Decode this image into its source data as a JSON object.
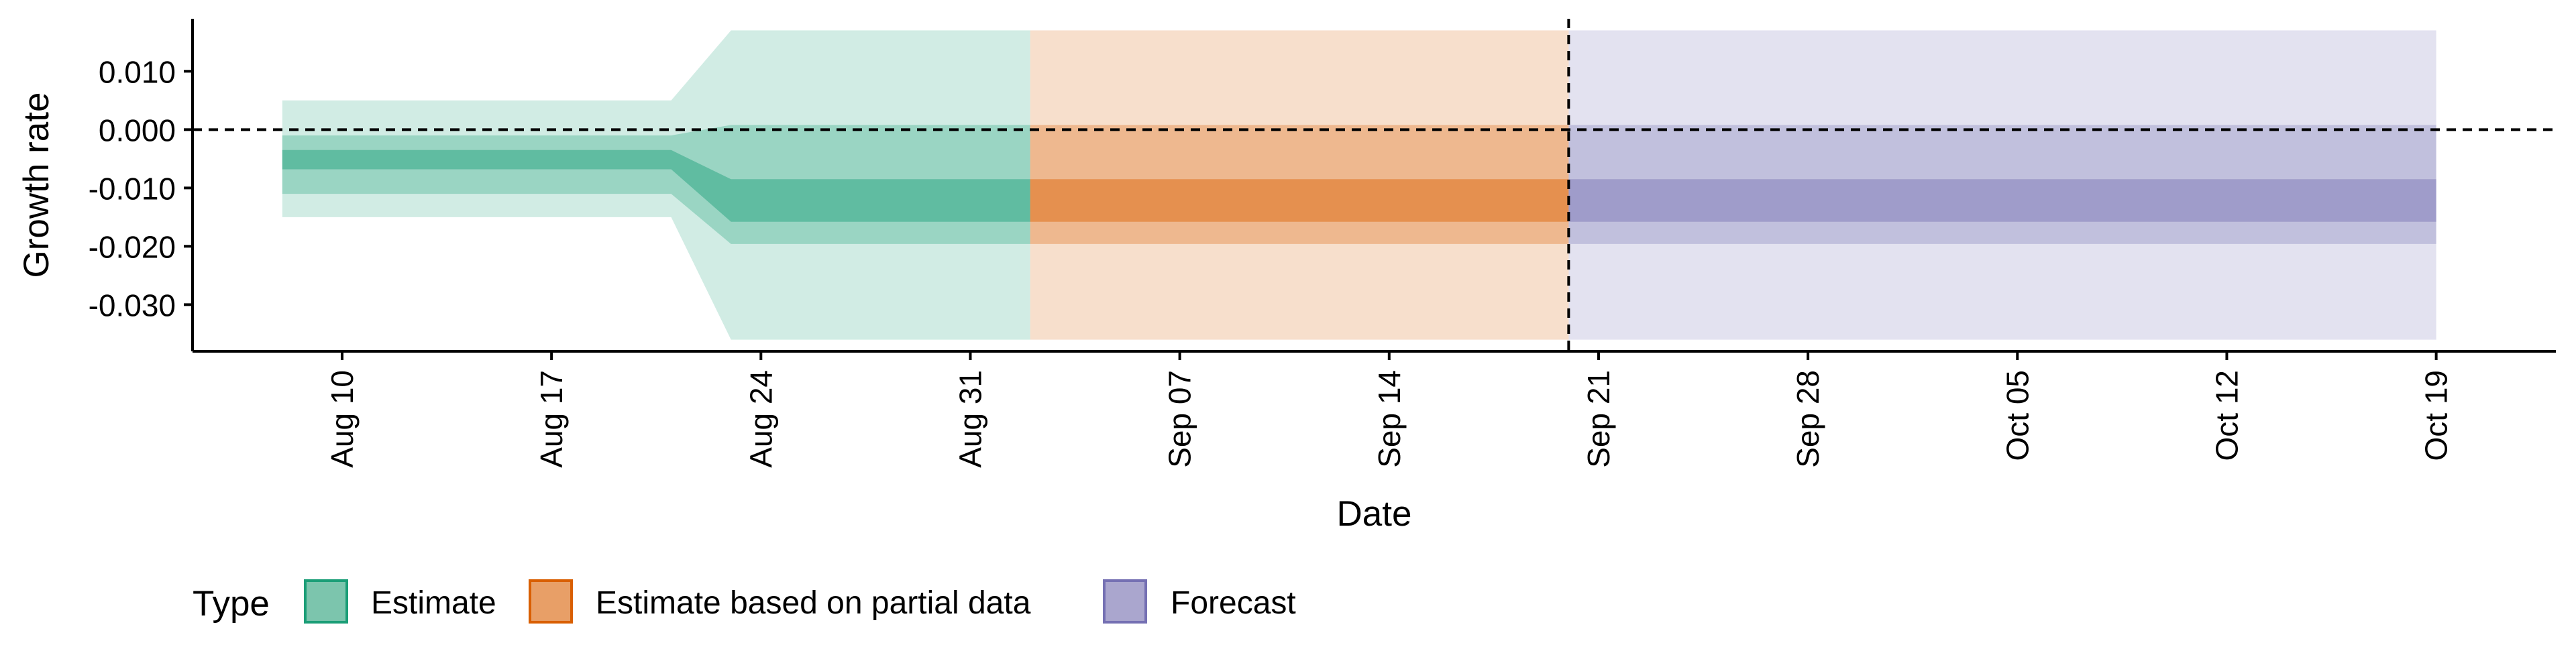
{
  "chart_data": {
    "type": "area",
    "xlabel": "Date",
    "ylabel": "Growth rate",
    "x_ticks": [
      "Aug 10",
      "Aug 17",
      "Aug 24",
      "Aug 31",
      "Sep 07",
      "Sep 14",
      "Sep 21",
      "Sep 28",
      "Oct 05",
      "Oct 12",
      "Oct 19"
    ],
    "x_tick_dates": [
      "2020-08-10",
      "2020-08-17",
      "2020-08-24",
      "2020-08-31",
      "2020-09-07",
      "2020-09-14",
      "2020-09-21",
      "2020-09-28",
      "2020-10-05",
      "2020-10-12",
      "2020-10-19"
    ],
    "xlim": [
      "2020-08-05",
      "2020-10-23"
    ],
    "y_ticks": [
      "0.010",
      "0.000",
      "-0.010",
      "-0.020",
      "-0.030"
    ],
    "ylim": [
      -0.038,
      0.019
    ],
    "grid": false,
    "reference_lines": {
      "y": 0.0,
      "x_date": "2020-09-20",
      "style": "dashed"
    },
    "legend": {
      "title": "Type",
      "position": "bottom-left",
      "entries": [
        {
          "label": "Estimate",
          "fill": "#7cc5ad",
          "border": "#1b9e77"
        },
        {
          "label": "Estimate based on partial data",
          "fill": "#e89f67",
          "border": "#d95f02"
        },
        {
          "label": "Forecast",
          "fill": "#aaa6ce",
          "border": "#7570b3"
        }
      ]
    },
    "series": [
      {
        "name": "Estimate",
        "color": "#1b9e77",
        "points": [
          {
            "date": "2020-08-09",
            "lo90": -0.015,
            "hi90": 0.005,
            "lo50": -0.011,
            "hi50": -0.001,
            "lo20": -0.0068,
            "hi20": -0.0035
          },
          {
            "date": "2020-08-21",
            "lo90": -0.015,
            "hi90": 0.005,
            "lo50": -0.011,
            "hi50": -0.001,
            "lo20": -0.0068,
            "hi20": -0.0035
          },
          {
            "date": "2020-08-23",
            "lo90": -0.036,
            "hi90": 0.017,
            "lo50": -0.0196,
            "hi50": 0.0008,
            "lo20": -0.0158,
            "hi20": -0.0085
          },
          {
            "date": "2020-09-02",
            "lo90": -0.036,
            "hi90": 0.017,
            "lo50": -0.0196,
            "hi50": 0.0008,
            "lo20": -0.0158,
            "hi20": -0.0085
          }
        ]
      },
      {
        "name": "Estimate based on partial data",
        "color": "#d95f02",
        "points": [
          {
            "date": "2020-09-03",
            "lo90": -0.036,
            "hi90": 0.017,
            "lo50": -0.0196,
            "hi50": 0.0008,
            "lo20": -0.0158,
            "hi20": -0.0085
          },
          {
            "date": "2020-09-20",
            "lo90": -0.036,
            "hi90": 0.017,
            "lo50": -0.0196,
            "hi50": 0.0008,
            "lo20": -0.0158,
            "hi20": -0.0085
          }
        ]
      },
      {
        "name": "Forecast",
        "color": "#7570b3",
        "points": [
          {
            "date": "2020-09-21",
            "lo90": -0.036,
            "hi90": 0.017,
            "lo50": -0.0196,
            "hi50": 0.0008,
            "lo20": -0.0158,
            "hi20": -0.0085
          },
          {
            "date": "2020-10-19",
            "lo90": -0.036,
            "hi90": 0.017,
            "lo50": -0.0196,
            "hi50": 0.0008,
            "lo20": -0.0158,
            "hi20": -0.0085
          }
        ]
      }
    ]
  }
}
